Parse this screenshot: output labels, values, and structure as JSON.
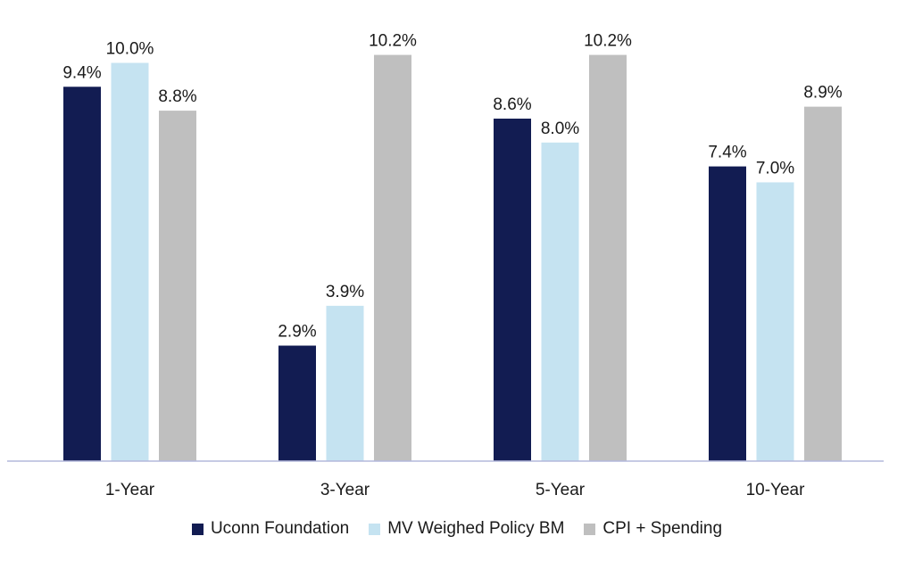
{
  "chart_data": {
    "type": "bar",
    "title": "",
    "xlabel": "",
    "ylabel": "",
    "ylim": [
      0,
      11
    ],
    "grid": false,
    "legend_position": "bottom",
    "categories": [
      "1-Year",
      "3-Year",
      "5-Year",
      "10-Year"
    ],
    "series": [
      {
        "name": "Uconn Foundation",
        "color": "#121c52",
        "values": [
          9.4,
          2.9,
          8.6,
          7.4
        ],
        "labels": [
          "9.4%",
          "2.9%",
          "8.6%",
          "7.4%"
        ]
      },
      {
        "name": "MV Weighed Policy BM",
        "color": "#c5e3f1",
        "values": [
          10.0,
          3.9,
          8.0,
          7.0
        ],
        "labels": [
          "10.0%",
          "3.9%",
          "8.0%",
          "7.0%"
        ]
      },
      {
        "name": "CPI + Spending",
        "color": "#bfbfbf",
        "values": [
          8.8,
          10.2,
          10.2,
          8.9
        ],
        "labels": [
          "8.8%",
          "10.2%",
          "10.2%",
          "8.9%"
        ]
      }
    ],
    "axis_color": "#b4b8dc"
  }
}
